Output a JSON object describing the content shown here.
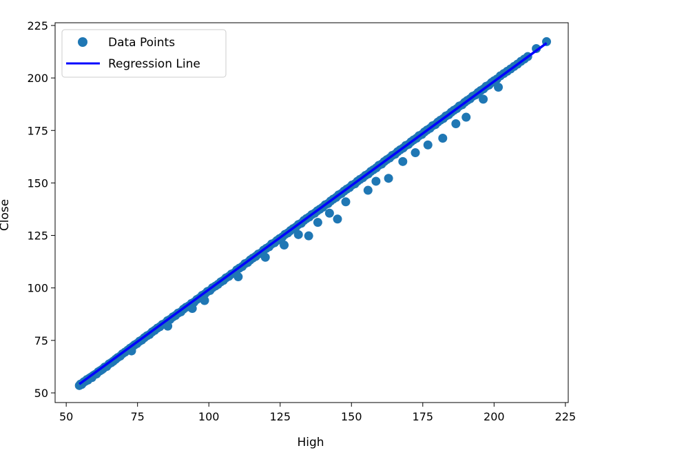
{
  "chart_data": {
    "type": "scatter",
    "title": "",
    "xlabel": "High",
    "ylabel": "Close",
    "xlim": [
      46.1,
      226.0
    ],
    "ylim": [
      45.4,
      226.3
    ],
    "xticks": [
      "50",
      "75",
      "100",
      "125",
      "150",
      "175",
      "200",
      "225"
    ],
    "yticks": [
      "50",
      "75",
      "100",
      "125",
      "150",
      "175",
      "200",
      "225"
    ],
    "grid": false,
    "legend_position": "upper-left",
    "series": [
      {
        "name": "Data Points",
        "kind": "scatter",
        "color": "#1f77b4",
        "points": [
          [
            54.6,
            53.5
          ],
          [
            55.0,
            54.2
          ],
          [
            55.4,
            54.0
          ],
          [
            55.9,
            54.8
          ],
          [
            56.2,
            55.3
          ],
          [
            56.8,
            55.6
          ],
          [
            57.2,
            56.3
          ],
          [
            57.6,
            56.1
          ],
          [
            58.1,
            57.0
          ],
          [
            58.7,
            57.5
          ],
          [
            59.0,
            57.3
          ],
          [
            59.5,
            58.3
          ],
          [
            60.1,
            58.8
          ],
          [
            60.6,
            59.0
          ],
          [
            61.2,
            60.0
          ],
          [
            61.8,
            60.5
          ],
          [
            62.4,
            61.0
          ],
          [
            62.9,
            61.5
          ],
          [
            63.5,
            62.3
          ],
          [
            64.2,
            62.6
          ],
          [
            65.0,
            63.8
          ],
          [
            65.8,
            64.4
          ],
          [
            66.5,
            65.1
          ],
          [
            67.3,
            66.0
          ],
          [
            68.0,
            66.8
          ],
          [
            68.9,
            67.5
          ],
          [
            69.7,
            68.6
          ],
          [
            70.6,
            69.4
          ],
          [
            71.5,
            70.3
          ],
          [
            72.4,
            71.3
          ],
          [
            73.3,
            72.1
          ],
          [
            74.0,
            72.9
          ],
          [
            74.8,
            73.5
          ],
          [
            75.7,
            74.6
          ],
          [
            76.5,
            75.2
          ],
          [
            77.4,
            76.3
          ],
          [
            78.3,
            77.2
          ],
          [
            79.2,
            77.8
          ],
          [
            80.1,
            79.0
          ],
          [
            81.0,
            79.8
          ],
          [
            81.9,
            80.8
          ],
          [
            82.8,
            81.5
          ],
          [
            83.7,
            82.6
          ],
          [
            84.6,
            83.1
          ],
          [
            85.5,
            84.4
          ],
          [
            86.4,
            85.0
          ],
          [
            87.4,
            86.2
          ],
          [
            88.3,
            86.9
          ],
          [
            89.2,
            88.0
          ],
          [
            90.2,
            88.6
          ],
          [
            91.1,
            89.9
          ],
          [
            92.0,
            90.8
          ],
          [
            93.0,
            91.5
          ],
          [
            93.9,
            92.6
          ],
          [
            94.8,
            93.2
          ],
          [
            95.8,
            94.5
          ],
          [
            96.7,
            95.2
          ],
          [
            97.6,
            96.4
          ],
          [
            98.6,
            97.1
          ],
          [
            99.5,
            98.3
          ],
          [
            100.4,
            98.8
          ],
          [
            101.3,
            100.1
          ],
          [
            102.3,
            100.9
          ],
          [
            103.2,
            101.7
          ],
          [
            104.2,
            102.9
          ],
          [
            105.1,
            103.6
          ],
          [
            106.0,
            104.8
          ],
          [
            107.0,
            105.5
          ],
          [
            107.9,
            106.6
          ],
          [
            108.9,
            107.2
          ],
          [
            109.8,
            108.6
          ],
          [
            110.7,
            109.4
          ],
          [
            111.7,
            110.2
          ],
          [
            112.6,
            111.5
          ],
          [
            113.6,
            112.1
          ],
          [
            114.5,
            113.3
          ],
          [
            115.4,
            114.2
          ],
          [
            116.4,
            115.0
          ],
          [
            117.3,
            116.1
          ],
          [
            118.3,
            116.7
          ],
          [
            119.2,
            118.0
          ],
          [
            120.1,
            118.8
          ],
          [
            121.1,
            119.6
          ],
          [
            122.0,
            120.9
          ],
          [
            123.0,
            121.5
          ],
          [
            123.9,
            122.6
          ],
          [
            124.8,
            123.5
          ],
          [
            125.8,
            124.3
          ],
          [
            126.7,
            125.5
          ],
          [
            127.7,
            126.2
          ],
          [
            128.6,
            127.3
          ],
          [
            129.5,
            128.2
          ],
          [
            130.5,
            129.0
          ],
          [
            131.4,
            130.2
          ],
          [
            132.4,
            130.8
          ],
          [
            133.3,
            132.1
          ],
          [
            134.2,
            133.0
          ],
          [
            135.2,
            133.8
          ],
          [
            136.1,
            134.9
          ],
          [
            137.1,
            135.6
          ],
          [
            138.0,
            136.7
          ],
          [
            138.9,
            137.5
          ],
          [
            139.9,
            138.4
          ],
          [
            140.8,
            139.6
          ],
          [
            141.8,
            140.2
          ],
          [
            142.7,
            141.4
          ],
          [
            143.6,
            142.3
          ],
          [
            144.6,
            143.1
          ],
          [
            145.5,
            144.3
          ],
          [
            146.5,
            145.0
          ],
          [
            147.4,
            146.1
          ],
          [
            148.3,
            147.0
          ],
          [
            149.3,
            147.8
          ],
          [
            150.2,
            149.0
          ],
          [
            151.2,
            149.6
          ],
          [
            152.1,
            150.8
          ],
          [
            153.0,
            151.7
          ],
          [
            154.0,
            152.5
          ],
          [
            154.9,
            153.6
          ],
          [
            155.9,
            154.3
          ],
          [
            156.8,
            155.5
          ],
          [
            157.7,
            156.3
          ],
          [
            158.7,
            157.2
          ],
          [
            159.6,
            158.4
          ],
          [
            160.6,
            159.0
          ],
          [
            161.5,
            160.2
          ],
          [
            162.4,
            161.1
          ],
          [
            163.4,
            161.9
          ],
          [
            164.3,
            163.1
          ],
          [
            165.3,
            163.7
          ],
          [
            166.2,
            164.9
          ],
          [
            167.1,
            165.8
          ],
          [
            168.1,
            166.6
          ],
          [
            169.0,
            167.8
          ],
          [
            170.0,
            168.4
          ],
          [
            170.9,
            169.6
          ],
          [
            171.8,
            170.5
          ],
          [
            172.8,
            171.3
          ],
          [
            173.7,
            172.5
          ],
          [
            174.7,
            173.1
          ],
          [
            175.6,
            174.3
          ],
          [
            176.5,
            175.2
          ],
          [
            177.5,
            176.0
          ],
          [
            178.4,
            177.2
          ],
          [
            179.4,
            177.8
          ],
          [
            180.3,
            179.0
          ],
          [
            181.2,
            179.9
          ],
          [
            182.2,
            180.7
          ],
          [
            183.1,
            181.9
          ],
          [
            184.1,
            182.5
          ],
          [
            185.0,
            183.7
          ],
          [
            185.9,
            184.6
          ],
          [
            186.9,
            185.4
          ],
          [
            187.8,
            186.6
          ],
          [
            188.8,
            187.2
          ],
          [
            189.7,
            188.4
          ],
          [
            190.6,
            189.3
          ],
          [
            191.6,
            190.1
          ],
          [
            192.5,
            191.3
          ],
          [
            193.5,
            191.9
          ],
          [
            194.4,
            193.1
          ],
          [
            195.3,
            194.0
          ],
          [
            196.3,
            194.8
          ],
          [
            197.2,
            196.0
          ],
          [
            198.2,
            196.6
          ],
          [
            199.1,
            197.8
          ],
          [
            200.0,
            198.7
          ],
          [
            201.0,
            199.5
          ],
          [
            202.2,
            201.0
          ],
          [
            203.4,
            202.1
          ],
          [
            204.6,
            203.2
          ],
          [
            205.8,
            204.3
          ],
          [
            207.0,
            205.5
          ],
          [
            208.2,
            206.6
          ],
          [
            209.4,
            207.9
          ],
          [
            210.6,
            209.0
          ],
          [
            211.8,
            210.2
          ],
          [
            214.8,
            214.0
          ],
          [
            218.4,
            217.3
          ],
          [
            135.0,
            124.8
          ],
          [
            145.1,
            132.8
          ],
          [
            163.0,
            152.2
          ],
          [
            182.0,
            171.3
          ],
          [
            190.2,
            181.3
          ],
          [
            155.8,
            146.5
          ],
          [
            148.0,
            141.0
          ],
          [
            168.0,
            160.2
          ],
          [
            176.8,
            168.1
          ],
          [
            196.2,
            189.9
          ],
          [
            201.5,
            195.6
          ],
          [
            138.2,
            131.2
          ],
          [
            131.4,
            125.4
          ],
          [
            158.6,
            150.8
          ],
          [
            172.4,
            164.4
          ],
          [
            186.6,
            178.2
          ],
          [
            94.2,
            90.2
          ],
          [
            85.6,
            81.8
          ],
          [
            110.3,
            105.3
          ],
          [
            72.9,
            70.0
          ],
          [
            98.5,
            94.0
          ],
          [
            119.8,
            114.6
          ],
          [
            142.3,
            135.6
          ],
          [
            126.4,
            120.4
          ]
        ]
      },
      {
        "name": "Regression Line",
        "kind": "line",
        "color": "#0000ff",
        "x": [
          54.6,
          218.4
        ],
        "y": [
          54.2,
          216.6
        ]
      }
    ]
  }
}
